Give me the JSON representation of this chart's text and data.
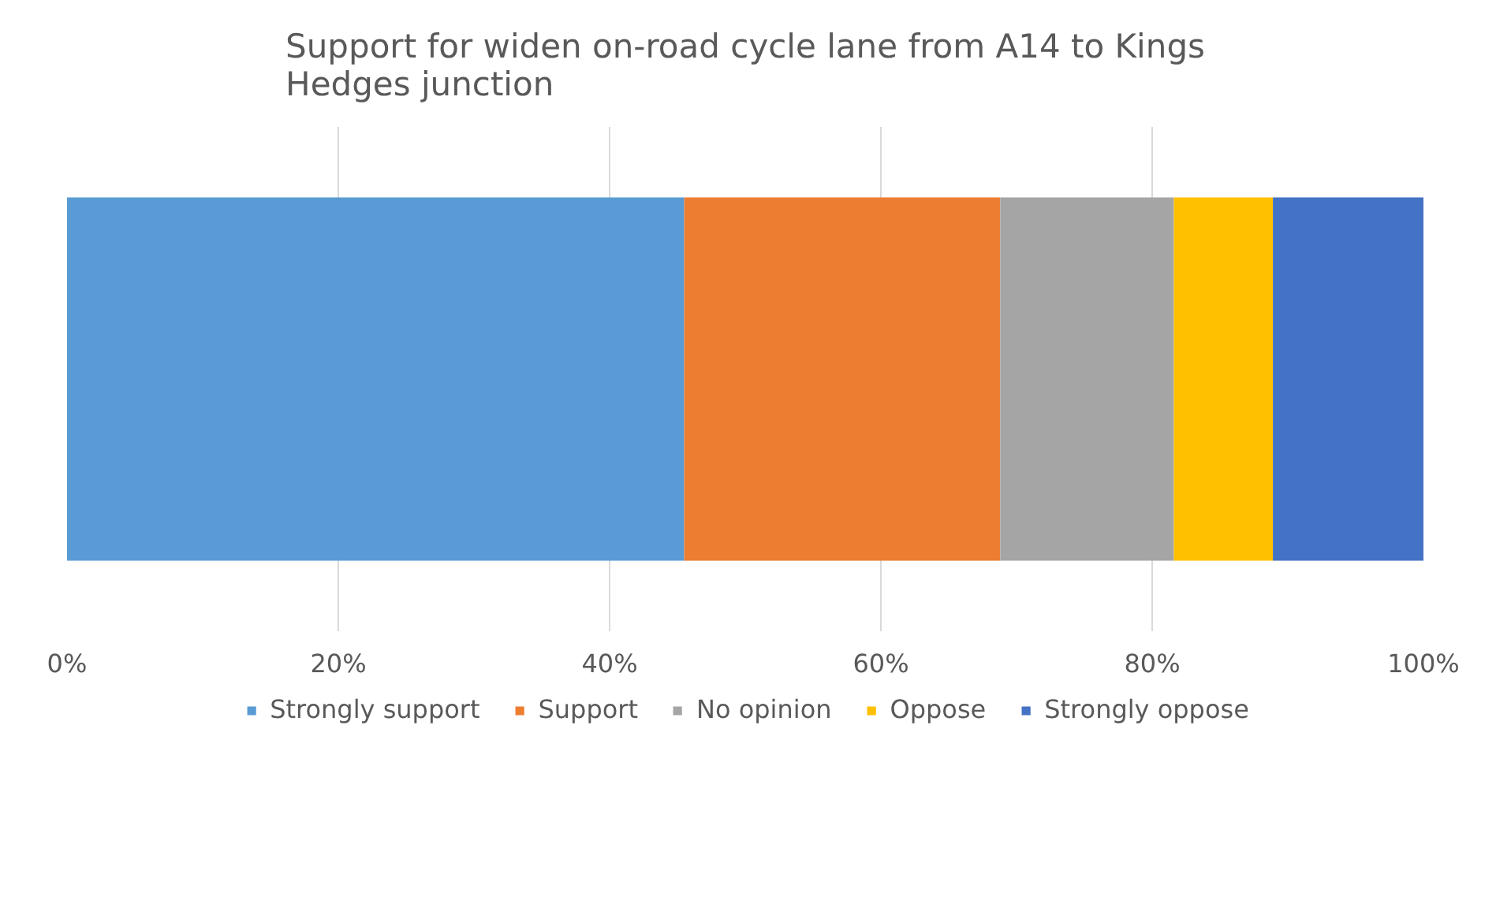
{
  "chart_data": {
    "type": "bar",
    "orientation": "horizontal",
    "stacked": true,
    "title": "Support for widen on-road cycle lane from A14 to Kings Hedges junction",
    "categories": [
      null
    ],
    "series": [
      {
        "name": "Strongly support",
        "color": "#5b9bd5",
        "values": [
          45.5
        ]
      },
      {
        "name": "Support",
        "color": "#ed7d31",
        "values": [
          23.3
        ]
      },
      {
        "name": "No opinion",
        "color": "#a5a5a5",
        "values": [
          12.8
        ]
      },
      {
        "name": "Oppose",
        "color": "#ffc000",
        "values": [
          7.3
        ]
      },
      {
        "name": "Strongly oppose",
        "color": "#4472c4",
        "values": [
          11.1
        ]
      }
    ],
    "xlim": [
      0,
      100
    ],
    "xticks": [
      {
        "value": 0,
        "label": "0%"
      },
      {
        "value": 20,
        "label": "20%"
      },
      {
        "value": 40,
        "label": "40%"
      },
      {
        "value": 60,
        "label": "60%"
      },
      {
        "value": 80,
        "label": "80%"
      },
      {
        "value": 100,
        "label": "100%"
      }
    ],
    "grid": "x",
    "legend": "bottom"
  }
}
